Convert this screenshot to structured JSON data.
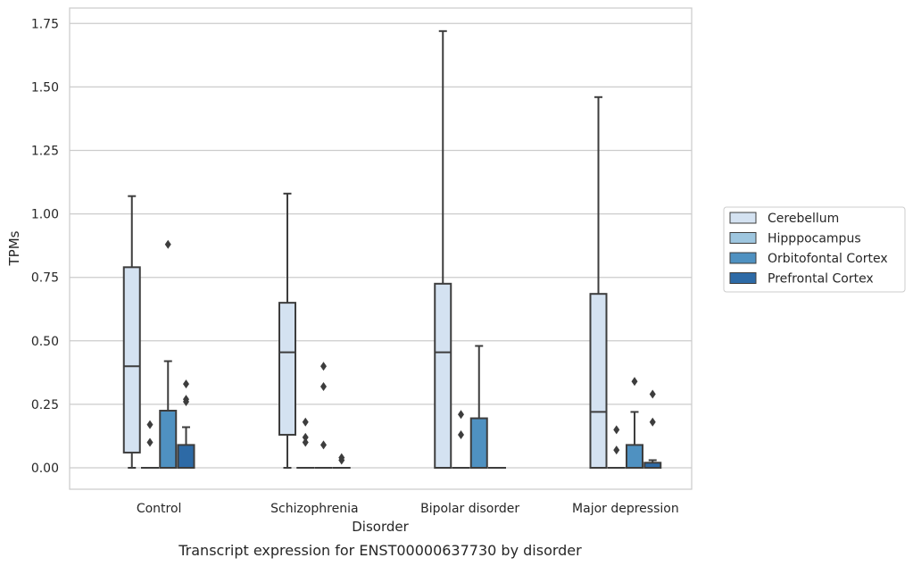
{
  "caption": "Transcript expression for ENST00000637730 by disorder",
  "chart_data": {
    "type": "boxplot",
    "xlabel": "Disorder",
    "ylabel": "TPMs",
    "ylim": [
      -0.08,
      1.81
    ],
    "yticks": [
      "0.00",
      "0.25",
      "0.50",
      "0.75",
      "1.00",
      "1.25",
      "1.50",
      "1.75"
    ],
    "categories": [
      "Control",
      "Schizophrenia",
      "Bipolar disorder",
      "Major depression"
    ],
    "grid": "horizontal",
    "legend_position": "right",
    "series": [
      {
        "name": "Cerebellum",
        "color": "#d4e2f1",
        "boxes": [
          {
            "whislo": 0.0,
            "q1": 0.06,
            "med": 0.4,
            "q3": 0.79,
            "whishi": 1.07,
            "fliers": []
          },
          {
            "whislo": 0.0,
            "q1": 0.13,
            "med": 0.455,
            "q3": 0.65,
            "whishi": 1.08,
            "fliers": []
          },
          {
            "whislo": 0.0,
            "q1": 0.0,
            "med": 0.455,
            "q3": 0.725,
            "whishi": 1.72,
            "fliers": []
          },
          {
            "whislo": 0.0,
            "q1": 0.0,
            "med": 0.22,
            "q3": 0.685,
            "whishi": 1.46,
            "fliers": []
          }
        ]
      },
      {
        "name": "Hipppocampus",
        "color": "#9ec6df",
        "boxes": [
          {
            "whislo": 0.0,
            "q1": 0.0,
            "med": 0.0,
            "q3": 0.0,
            "whishi": 0.0,
            "fliers": [
              0.1,
              0.17
            ]
          },
          {
            "whislo": 0.0,
            "q1": 0.0,
            "med": 0.0,
            "q3": 0.0,
            "whishi": 0.0,
            "fliers": [
              0.1,
              0.12,
              0.18
            ]
          },
          {
            "whislo": 0.0,
            "q1": 0.0,
            "med": 0.0,
            "q3": 0.0,
            "whishi": 0.0,
            "fliers": [
              0.13,
              0.21
            ]
          },
          {
            "whislo": 0.0,
            "q1": 0.0,
            "med": 0.0,
            "q3": 0.0,
            "whishi": 0.0,
            "fliers": [
              0.07,
              0.15
            ]
          }
        ]
      },
      {
        "name": "Orbitofontal Cortex",
        "color": "#4f91c1",
        "boxes": [
          {
            "whislo": 0.0,
            "q1": 0.0,
            "med": 0.0,
            "q3": 0.225,
            "whishi": 0.42,
            "fliers": [
              0.88
            ]
          },
          {
            "whislo": 0.0,
            "q1": 0.0,
            "med": 0.0,
            "q3": 0.0,
            "whishi": 0.0,
            "fliers": [
              0.09,
              0.32,
              0.4
            ]
          },
          {
            "whislo": 0.0,
            "q1": 0.0,
            "med": 0.0,
            "q3": 0.195,
            "whishi": 0.48,
            "fliers": []
          },
          {
            "whislo": 0.0,
            "q1": 0.0,
            "med": 0.0,
            "q3": 0.09,
            "whishi": 0.22,
            "fliers": [
              0.34
            ]
          }
        ]
      },
      {
        "name": "Prefrontal Cortex",
        "color": "#2d6aa6",
        "boxes": [
          {
            "whislo": 0.0,
            "q1": 0.0,
            "med": 0.0,
            "q3": 0.09,
            "whishi": 0.16,
            "fliers": [
              0.26,
              0.27,
              0.33
            ]
          },
          {
            "whislo": 0.0,
            "q1": 0.0,
            "med": 0.0,
            "q3": 0.0,
            "whishi": 0.0,
            "fliers": [
              0.03,
              0.04
            ]
          },
          {
            "whislo": 0.0,
            "q1": 0.0,
            "med": 0.0,
            "q3": 0.0,
            "whishi": 0.0,
            "fliers": []
          },
          {
            "whislo": 0.0,
            "q1": 0.0,
            "med": 0.0,
            "q3": 0.02,
            "whishi": 0.03,
            "fliers": [
              0.18,
              0.29
            ]
          }
        ]
      }
    ]
  }
}
